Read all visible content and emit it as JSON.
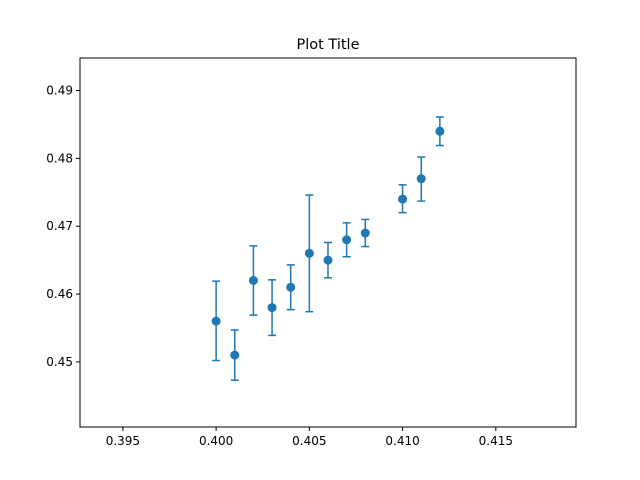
{
  "chart_data": {
    "type": "scatter",
    "title": "Plot Title",
    "xlabel": "",
    "ylabel": "",
    "xlim": [
      0.3927,
      0.4193
    ],
    "ylim": [
      0.4404,
      0.4948
    ],
    "x_ticks": [
      0.395,
      0.4,
      0.405,
      0.41,
      0.415
    ],
    "x_tick_labels": [
      "0.395",
      "0.400",
      "0.405",
      "0.410",
      "0.415"
    ],
    "y_ticks": [
      0.45,
      0.46,
      0.47,
      0.48,
      0.49
    ],
    "y_tick_labels": [
      "0.45",
      "0.46",
      "0.47",
      "0.48",
      "0.49"
    ],
    "grid": false,
    "series": [
      {
        "color": "#1f77b4",
        "points": [
          {
            "x": 0.4,
            "y": 0.456,
            "yerr_low": 0.4502,
            "yerr_high": 0.4619
          },
          {
            "x": 0.401,
            "y": 0.451,
            "yerr_low": 0.4473,
            "yerr_high": 0.4547
          },
          {
            "x": 0.402,
            "y": 0.462,
            "yerr_low": 0.4569,
            "yerr_high": 0.4671
          },
          {
            "x": 0.403,
            "y": 0.458,
            "yerr_low": 0.4539,
            "yerr_high": 0.4621
          },
          {
            "x": 0.404,
            "y": 0.461,
            "yerr_low": 0.4577,
            "yerr_high": 0.4643
          },
          {
            "x": 0.405,
            "y": 0.466,
            "yerr_low": 0.4574,
            "yerr_high": 0.4746
          },
          {
            "x": 0.406,
            "y": 0.465,
            "yerr_low": 0.4624,
            "yerr_high": 0.4676
          },
          {
            "x": 0.407,
            "y": 0.468,
            "yerr_low": 0.4655,
            "yerr_high": 0.4705
          },
          {
            "x": 0.408,
            "y": 0.469,
            "yerr_low": 0.467,
            "yerr_high": 0.471
          },
          {
            "x": 0.41,
            "y": 0.474,
            "yerr_low": 0.472,
            "yerr_high": 0.4761
          },
          {
            "x": 0.411,
            "y": 0.477,
            "yerr_low": 0.4737,
            "yerr_high": 0.4802
          },
          {
            "x": 0.412,
            "y": 0.484,
            "yerr_low": 0.4819,
            "yerr_high": 0.4861
          }
        ]
      }
    ]
  }
}
